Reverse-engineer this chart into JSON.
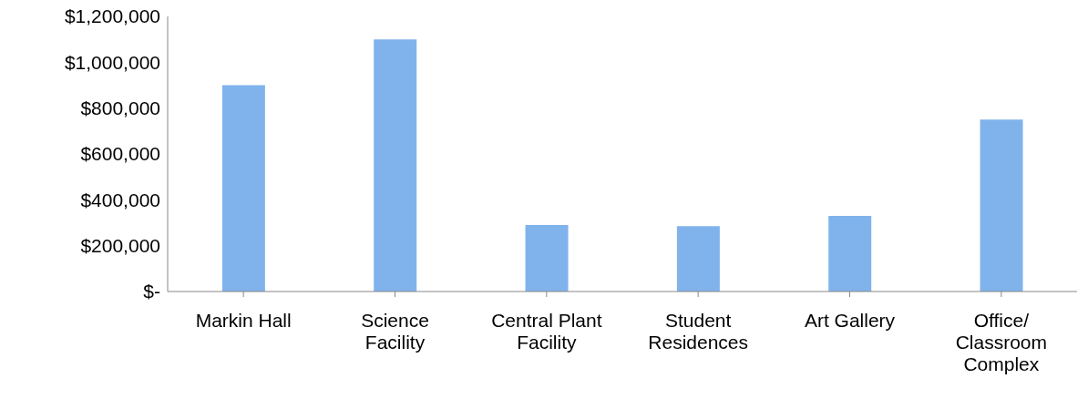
{
  "chart_data": {
    "type": "bar",
    "categories": [
      "Markin Hall",
      "Science Facility",
      "Central Plant Facility",
      "Student Residences",
      "Art Gallery",
      "Office/Classroom Complex"
    ],
    "values": [
      900000,
      1100000,
      290000,
      285000,
      330000,
      750000
    ],
    "color": "#80b3ec",
    "ylim": [
      0,
      1200000
    ],
    "yticks": [
      {
        "value": 0,
        "label": "$-"
      },
      {
        "value": 200000,
        "label": "$200,000"
      },
      {
        "value": 400000,
        "label": "$400,000"
      },
      {
        "value": 600000,
        "label": "$600,000"
      },
      {
        "value": 800000,
        "label": "$800,000"
      },
      {
        "value": 1000000,
        "label": "$1,000,000"
      },
      {
        "value": 1200000,
        "label": "$1,200,000"
      }
    ],
    "grid": false,
    "legend": false
  }
}
